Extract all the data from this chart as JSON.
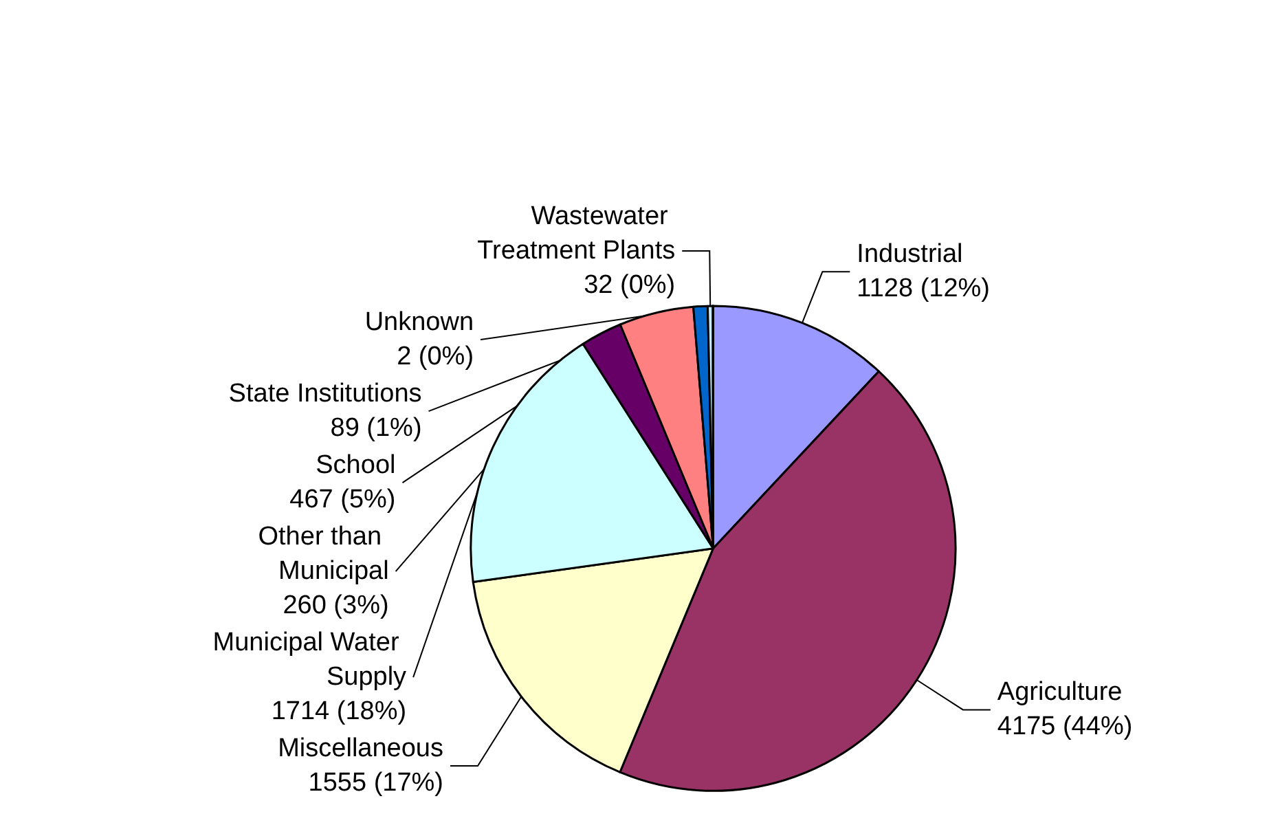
{
  "chart_data": {
    "type": "pie",
    "categories": [
      "Industrial",
      "Agriculture",
      "Miscellaneous",
      "Municipal Water Supply",
      "Other than Municipal",
      "School",
      "State Institutions",
      "Wastewater Treatment Plants",
      "Unknown"
    ],
    "values": [
      1128,
      4175,
      1555,
      1714,
      260,
      467,
      89,
      32,
      2
    ],
    "colors": [
      "#9999ff",
      "#993366",
      "#ffffcc",
      "#ccffff",
      "#660066",
      "#ff8080",
      "#0066cc",
      "#ccecff",
      "#808080"
    ],
    "value_labels": [
      "1128 (12%)",
      "4175 (44%)",
      "1555 (17%)",
      "1714 (18%)",
      "260 (3%)",
      "467 (5%)",
      "89 (1%)",
      "32 (0%)",
      "2 (0%)"
    ],
    "legend": false
  }
}
